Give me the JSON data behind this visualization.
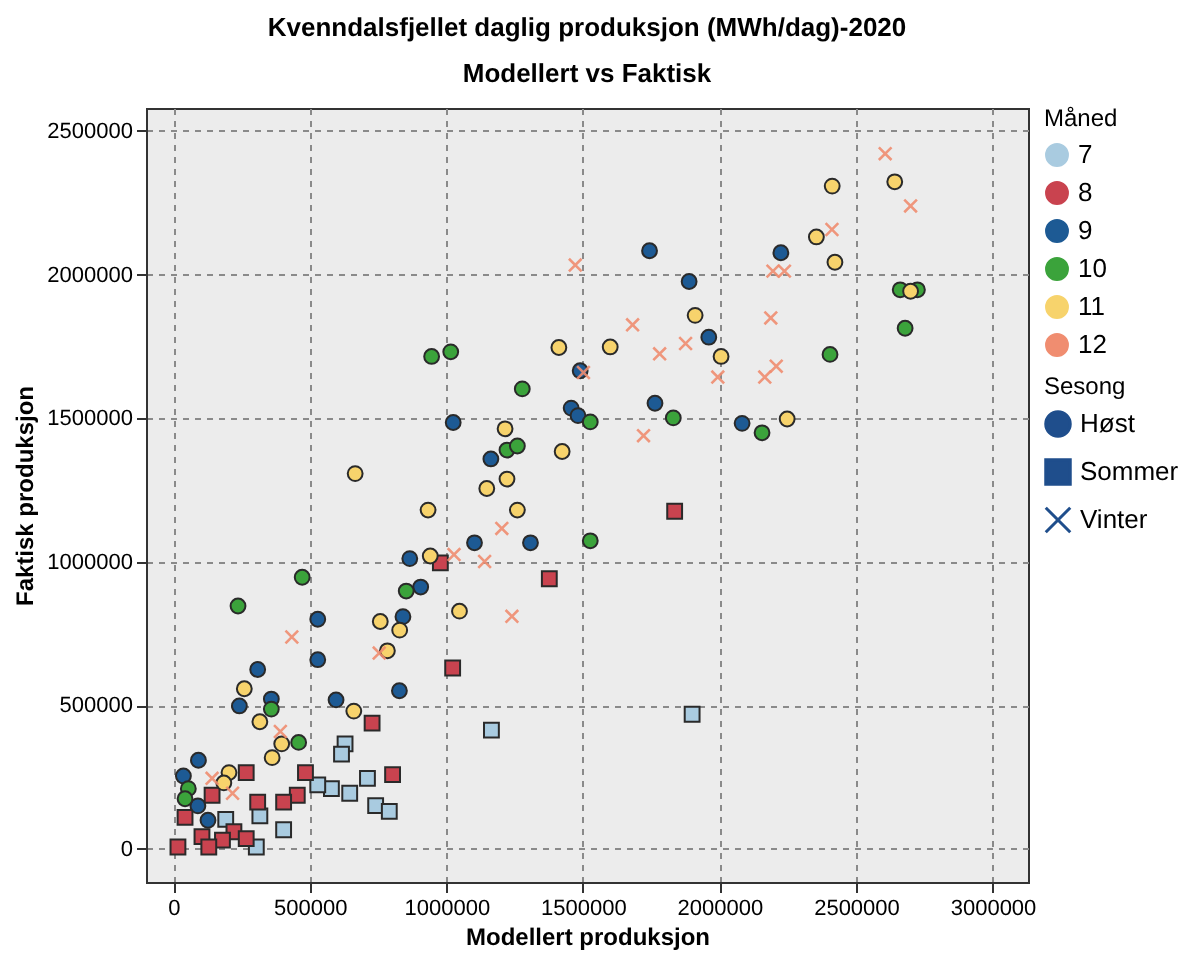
{
  "chart_data": {
    "type": "scatter",
    "title": "Kvenndalsfjellet daglig produksjon (MWh/dag)-2020",
    "subtitle": "Modellert vs Faktisk",
    "xlabel": "Modellert produksjon",
    "ylabel": "Faktisk produksjon",
    "legend_title": "Måned",
    "annotations": [
      "Sesong",
      "Høst",
      "Sommer",
      "Vinter"
    ],
    "xlim": [
      -100000,
      3130000
    ],
    "ylim": [
      -115000,
      2580000
    ],
    "xticks": [
      0,
      500000,
      1000000,
      1500000,
      2000000,
      2500000,
      3000000
    ],
    "yticks": [
      0,
      500000,
      1000000,
      1500000,
      2000000,
      2500000
    ],
    "grid": true,
    "legend": "right",
    "series": [
      {
        "name": "7",
        "color": "#a9cbe0",
        "marker": "square",
        "x": [
          1900000,
          1165000,
          629000,
          616000,
          711000,
          646000,
          579000,
          529000,
          741000,
          791000,
          404000,
          317000,
          192000,
          304000
        ],
        "values": [
          469000,
          414000,
          366000,
          330000,
          246000,
          194000,
          210000,
          223000,
          151000,
          131000,
          67000,
          115000,
          103000,
          7000
        ]
      },
      {
        "name": "8",
        "color": "#c9434f",
        "marker": "square",
        "x": [
          1836000,
          1377000,
          1023000,
          978000,
          803000,
          728000,
          484000,
          267000,
          454000,
          404000,
          309000,
          142000,
          43000,
          222000,
          267000,
          105000,
          17000,
          180000,
          130000
        ],
        "values": [
          1176000,
          941000,
          630000,
          996000,
          259000,
          438000,
          266000,
          266000,
          187000,
          163000,
          163000,
          187000,
          110000,
          60000,
          36000,
          43000,
          7000,
          31000,
          7000
        ]
      },
      {
        "name": "9",
        "color": "#1d5a94",
        "marker": "circle",
        "x": [
          1744000,
          1889000,
          2225000,
          1961000,
          1490000,
          1457000,
          1482000,
          1764000,
          2083000,
          1025000,
          1163000,
          1103000,
          1308000,
          866000,
          906000,
          841000,
          529000,
          529000,
          309000,
          828000,
          596000,
          242000,
          359000,
          92000,
          37000,
          90000,
          127000
        ],
        "values": [
          2083000,
          1976000,
          2076000,
          1782000,
          1665000,
          1535000,
          1509000,
          1552000,
          1482000,
          1485000,
          1358000,
          1066000,
          1066000,
          1011000,
          912000,
          809000,
          800000,
          659000,
          625000,
          551000,
          519000,
          498000,
          522000,
          309000,
          254000,
          150000,
          100000
        ]
      },
      {
        "name": "10",
        "color": "#3ba33b",
        "marker": "circle",
        "x": [
          946000,
          1016000,
          1278000,
          1527000,
          1831000,
          2156000,
          2405000,
          2680000,
          2662000,
          2725000,
          1222000,
          1260000,
          1527000,
          472000,
          237000,
          853000,
          359000,
          459000,
          55000,
          43000
        ],
        "values": [
          1715000,
          1731000,
          1602000,
          1487000,
          1501000,
          1449000,
          1722000,
          1813000,
          1947000,
          1947000,
          1389000,
          1403000,
          1073000,
          946000,
          846000,
          898000,
          487000,
          371000,
          210000,
          175000
        ]
      },
      {
        "name": "11",
        "color": "#f7d36c",
        "marker": "circle",
        "x": [
          2413000,
          2642000,
          2355000,
          2423000,
          2700000,
          1911000,
          2006000,
          2248000,
          1412000,
          1600000,
          1215000,
          1424000,
          1148000,
          1222000,
          933000,
          1260000,
          666000,
          1048000,
          941000,
          758000,
          829000,
          784000,
          661000,
          260000,
          317000,
          397000,
          362000,
          204000,
          185000
        ],
        "values": [
          2308000,
          2323000,
          2131000,
          2043000,
          1942000,
          1858000,
          1715000,
          1497000,
          1746000,
          1748000,
          1463000,
          1384000,
          1255000,
          1288000,
          1180000,
          1180000,
          1307000,
          828000,
          1020000,
          792000,
          762000,
          690000,
          480000,
          558000,
          443000,
          366000,
          318000,
          266000,
          230000
        ]
      },
      {
        "name": "12",
        "color": "#f08d70",
        "marker": "cross",
        "x": [
          2607000,
          2412000,
          2700000,
          2196000,
          2238000,
          2188000,
          2208000,
          2166000,
          1994000,
          1876000,
          1781000,
          1682000,
          1472000,
          1722000,
          1502000,
          1203000,
          1140000,
          1240000,
          1028000,
          434000,
          392000,
          142000,
          217000,
          754000
        ],
        "values": [
          2421000,
          2157000,
          2239000,
          2012000,
          2012000,
          1849000,
          1681000,
          1643000,
          1643000,
          1760000,
          1724000,
          1825000,
          2033000,
          1439000,
          1659000,
          1116000,
          1001000,
          810000,
          1025000,
          738000,
          409000,
          246000,
          194000,
          682000
        ]
      }
    ]
  }
}
